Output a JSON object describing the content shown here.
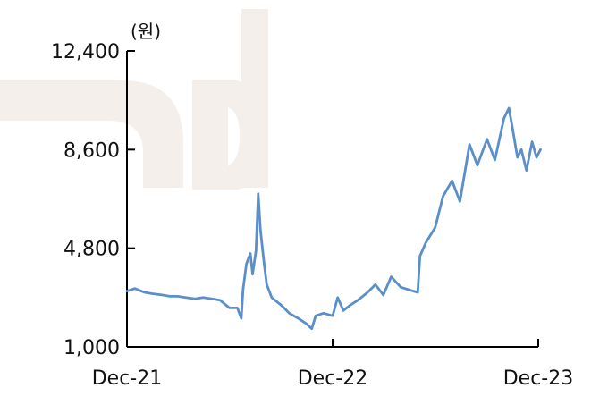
{
  "chart_data": {
    "type": "line",
    "unit_label": "(원)",
    "y_axis": {
      "min": 1000,
      "max": 12400,
      "ticks": [
        1000,
        4800,
        8600,
        12400
      ],
      "tick_labels": [
        "1,000",
        "4,800",
        "8,600",
        "12,400"
      ]
    },
    "x_axis": {
      "range": [
        "2021-12",
        "2023-12"
      ],
      "tick_labels": [
        "Dec-21",
        "Dec-22",
        "Dec-23"
      ]
    },
    "grid": false,
    "legend": "none",
    "series": [
      {
        "color": "#5b8fc9",
        "points": [
          [
            "2021-12-01",
            3150
          ],
          [
            "2021-12-15",
            3250
          ],
          [
            "2022-01-01",
            3100
          ],
          [
            "2022-01-15",
            3050
          ],
          [
            "2022-02-01",
            3000
          ],
          [
            "2022-02-15",
            2950
          ],
          [
            "2022-03-01",
            2950
          ],
          [
            "2022-03-15",
            2900
          ],
          [
            "2022-04-01",
            2850
          ],
          [
            "2022-04-15",
            2900
          ],
          [
            "2022-05-01",
            2850
          ],
          [
            "2022-05-15",
            2800
          ],
          [
            "2022-06-01",
            2500
          ],
          [
            "2022-06-15",
            2500
          ],
          [
            "2022-06-22",
            2100
          ],
          [
            "2022-06-25",
            3200
          ],
          [
            "2022-07-01",
            4200
          ],
          [
            "2022-07-08",
            4600
          ],
          [
            "2022-07-12",
            3800
          ],
          [
            "2022-07-18",
            4700
          ],
          [
            "2022-07-22",
            6900
          ],
          [
            "2022-07-26",
            5500
          ],
          [
            "2022-08-01",
            4300
          ],
          [
            "2022-08-06",
            3400
          ],
          [
            "2022-08-15",
            2900
          ],
          [
            "2022-09-01",
            2600
          ],
          [
            "2022-09-15",
            2300
          ],
          [
            "2022-10-01",
            2100
          ],
          [
            "2022-10-15",
            1900
          ],
          [
            "2022-10-25",
            1700
          ],
          [
            "2022-11-01",
            2200
          ],
          [
            "2022-11-15",
            2300
          ],
          [
            "2022-12-01",
            2200
          ],
          [
            "2022-12-10",
            2900
          ],
          [
            "2022-12-20",
            2400
          ],
          [
            "2023-01-01",
            2600
          ],
          [
            "2023-01-15",
            2800
          ],
          [
            "2023-02-01",
            3100
          ],
          [
            "2023-02-15",
            3400
          ],
          [
            "2023-03-01",
            3000
          ],
          [
            "2023-03-15",
            3700
          ],
          [
            "2023-04-01",
            3300
          ],
          [
            "2023-04-15",
            3200
          ],
          [
            "2023-05-01",
            3100
          ],
          [
            "2023-05-05",
            4500
          ],
          [
            "2023-05-15",
            5000
          ],
          [
            "2023-06-01",
            5600
          ],
          [
            "2023-06-15",
            6800
          ],
          [
            "2023-07-01",
            7400
          ],
          [
            "2023-07-15",
            6600
          ],
          [
            "2023-08-01",
            8800
          ],
          [
            "2023-08-15",
            8000
          ],
          [
            "2023-09-01",
            9000
          ],
          [
            "2023-09-15",
            8200
          ],
          [
            "2023-10-01",
            9800
          ],
          [
            "2023-10-10",
            10200
          ],
          [
            "2023-10-18",
            9200
          ],
          [
            "2023-10-25",
            8300
          ],
          [
            "2023-11-01",
            8600
          ],
          [
            "2023-11-10",
            7800
          ],
          [
            "2023-11-20",
            8900
          ],
          [
            "2023-11-28",
            8300
          ],
          [
            "2023-12-05",
            8600
          ]
        ]
      }
    ]
  }
}
